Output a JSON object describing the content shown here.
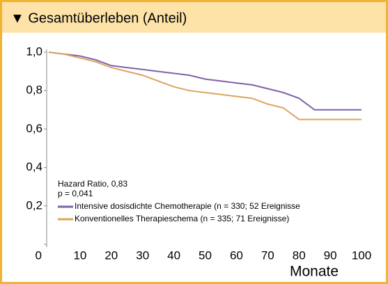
{
  "chart_data": {
    "type": "line",
    "title": "▼ Gesamtüberleben (Anteil)",
    "x_label": "Monate",
    "annotations": [
      "Hazard Ratio, 0,83",
      "p = 0,041"
    ],
    "x": [
      0,
      5,
      10,
      15,
      20,
      25,
      30,
      35,
      40,
      45,
      50,
      55,
      60,
      65,
      70,
      75,
      80,
      85,
      90,
      95,
      100
    ],
    "series": [
      {
        "name": "Intensive dosisdichte Chemotherapie (n = 330; 52 Ereignisse",
        "color": "#7d62a8",
        "values": [
          1,
          0.99,
          0.98,
          0.96,
          0.93,
          0.92,
          0.91,
          0.9,
          0.89,
          0.88,
          0.86,
          0.85,
          0.84,
          0.83,
          0.81,
          0.79,
          0.76,
          0.7,
          0.7,
          0.7,
          0.7
        ]
      },
      {
        "name": "Konventionelles Therapieschema (n = 335; 71 Ereignisse)",
        "color": "#dca45e",
        "values": [
          1,
          0.99,
          0.97,
          0.95,
          0.92,
          0.9,
          0.88,
          0.85,
          0.82,
          0.8,
          0.79,
          0.78,
          0.77,
          0.76,
          0.73,
          0.71,
          0.65,
          0.65,
          0.65,
          0.65,
          0.65
        ]
      }
    ],
    "xlim": [
      0,
      100
    ],
    "xticks": [
      10,
      20,
      30,
      40,
      50,
      60,
      70,
      80,
      90,
      100
    ],
    "ylim": [
      0,
      1
    ],
    "yticks": [
      0,
      {
        "value": 0.2,
        "label": "0,2"
      },
      {
        "value": 0.4,
        "label": "0,4"
      },
      {
        "value": 0.6,
        "label": "0,6"
      },
      {
        "value": 0.8,
        "label": "0,8"
      },
      {
        "value": 1,
        "label": "1,0"
      }
    ]
  }
}
